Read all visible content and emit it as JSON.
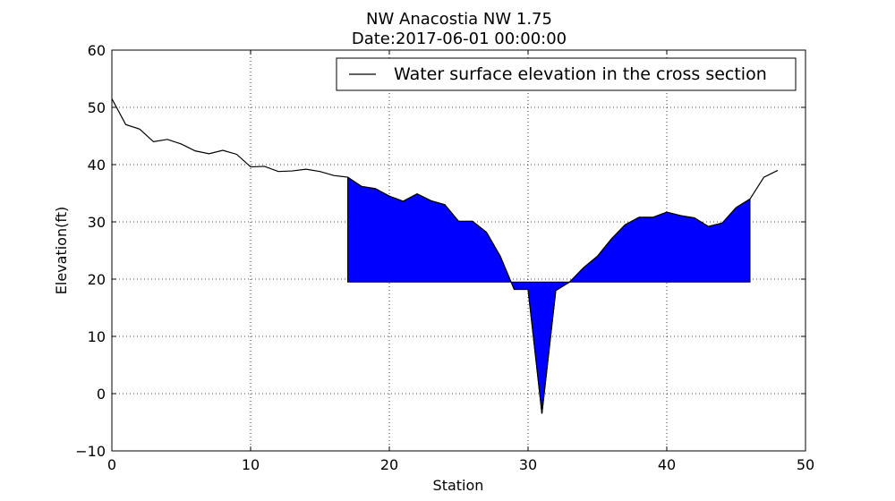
{
  "chart_data": {
    "type": "line",
    "title": "NW Anacostia NW 1.75",
    "subtitle": "Date:2017-06-01 00:00:00",
    "xlabel": "Station",
    "ylabel": "Elevation(ft)",
    "xlim": [
      0,
      50
    ],
    "ylim": [
      -10,
      60
    ],
    "xticks": [
      0,
      10,
      20,
      30,
      40,
      50
    ],
    "yticks": [
      -10,
      0,
      10,
      20,
      30,
      40,
      50,
      60
    ],
    "xtick_labels": [
      "0",
      "10",
      "20",
      "30",
      "40",
      "50"
    ],
    "ytick_labels": [
      "−10",
      "0",
      "10",
      "20",
      "30",
      "40",
      "50",
      "60"
    ],
    "grid": true,
    "legend_position": "top-right",
    "water_surface_elevation": 19.5,
    "fill_color": "#0000ff",
    "line_color": "#000000",
    "series": [
      {
        "name": "Water surface elevation in the cross section",
        "x": [
          0,
          1,
          2,
          3,
          4,
          5,
          6,
          7,
          8,
          9,
          10,
          11,
          12,
          13,
          14,
          15,
          16,
          17,
          18,
          19,
          20,
          21,
          22,
          23,
          24,
          25,
          26,
          27,
          28,
          29,
          30,
          31,
          32,
          33,
          34,
          35,
          36,
          37,
          38,
          39,
          40,
          41,
          42,
          43,
          44,
          45,
          46,
          47,
          48
        ],
        "y": [
          51.5,
          47.0,
          46.2,
          44.0,
          44.4,
          43.6,
          42.4,
          41.9,
          42.5,
          41.8,
          39.6,
          39.7,
          38.8,
          38.9,
          39.2,
          38.8,
          38.1,
          37.8,
          36.2,
          35.8,
          34.5,
          33.6,
          34.9,
          33.7,
          33.0,
          30.1,
          30.1,
          28.2,
          24.0,
          18.2,
          18.2,
          -3.5,
          18.0,
          19.5,
          22.0,
          24.0,
          27.0,
          29.5,
          30.8,
          30.8,
          31.7,
          31.1,
          30.7,
          29.2,
          29.8,
          32.5,
          34.0,
          37.8,
          39.0
        ]
      }
    ],
    "filled_region": {
      "x_start": 17,
      "x_end": 46
    }
  }
}
